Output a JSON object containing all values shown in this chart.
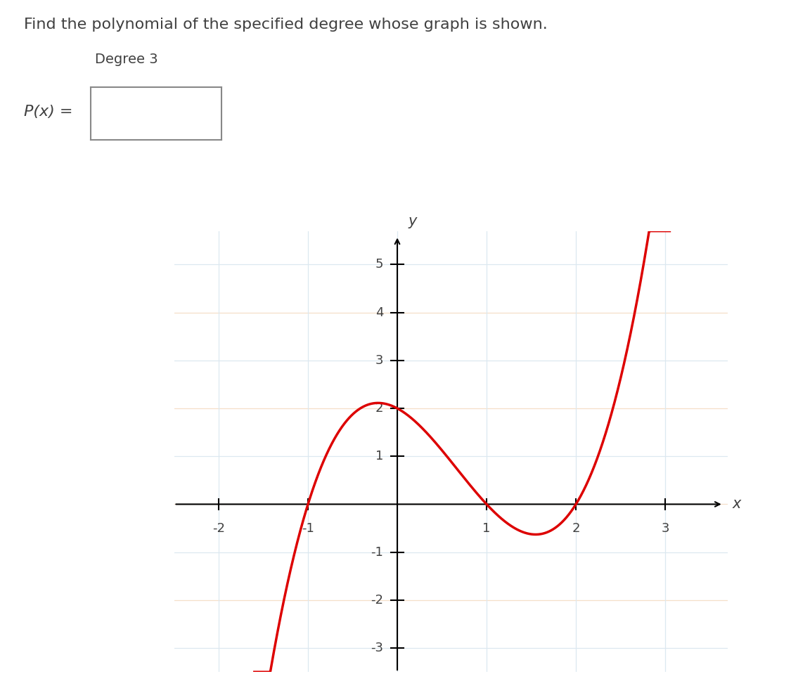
{
  "title_text": "Find the polynomial of the specified degree whose graph is shown.",
  "degree_text": "Degree 3",
  "px_label": "P(x) =",
  "xlabel": "x",
  "ylabel": "y",
  "xlim": [
    -2.5,
    3.7
  ],
  "ylim": [
    -3.5,
    5.7
  ],
  "xticks": [
    -2,
    -1,
    1,
    2,
    3
  ],
  "yticks": [
    -3,
    -2,
    -1,
    1,
    2,
    3,
    4,
    5
  ],
  "poly_coeffs": [
    1,
    -2,
    -1,
    2
  ],
  "curve_color": "#dd0000",
  "curve_linewidth": 2.5,
  "grid_color_main": "#dce8f0",
  "grid_color_orange": "#f5dfc8",
  "axis_color": "#000000",
  "background_color": "#ffffff",
  "text_color": "#404040",
  "box_color": "#888888",
  "x_plot_start": -1.6,
  "x_plot_end": 3.05,
  "title_fontsize": 16,
  "degree_fontsize": 14,
  "label_fontsize": 14,
  "tick_fontsize": 13,
  "axis_label_fontsize": 15
}
